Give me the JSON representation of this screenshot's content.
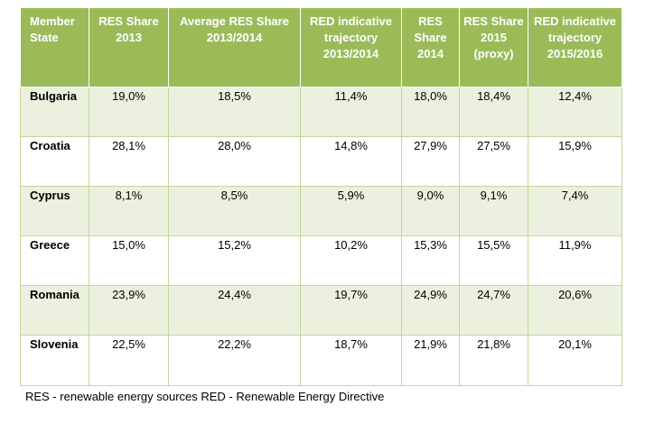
{
  "table": {
    "headers": [
      "Member State",
      "RES Share 2013",
      "Average RES Share 2013/2014",
      "RED indicative trajectory 2013/2014",
      "RES Share 2014",
      "RES Share 2015 (proxy)",
      "RED indicative trajectory 2015/2016"
    ],
    "rows": [
      {
        "state": "Bulgaria",
        "res2013": "19,0%",
        "avg_res": "18,5%",
        "red_1314": "11,4%",
        "res2014": "18,0%",
        "res2015": "18,4%",
        "red_1516": "12,4%"
      },
      {
        "state": "Croatia",
        "res2013": "28,1%",
        "avg_res": "28,0%",
        "red_1314": "14,8%",
        "res2014": "27,9%",
        "res2015": "27,5%",
        "red_1516": "15,9%"
      },
      {
        "state": "Cyprus",
        "res2013": "8,1%",
        "avg_res": "8,5%",
        "red_1314": "5,9%",
        "res2014": "9,0%",
        "res2015": "9,1%",
        "red_1516": "7,4%"
      },
      {
        "state": "Greece",
        "res2013": "15,0%",
        "avg_res": "15,2%",
        "red_1314": "10,2%",
        "res2014": "15,3%",
        "res2015": "15,5%",
        "red_1516": "11,9%"
      },
      {
        "state": "Romania",
        "res2013": "23,9%",
        "avg_res": "24,4%",
        "red_1314": "19,7%",
        "res2014": "24,9%",
        "res2015": "24,7%",
        "red_1516": "20,6%"
      },
      {
        "state": "Slovenia",
        "res2013": "22,5%",
        "avg_res": "22,2%",
        "red_1314": "18,7%",
        "res2014": "21,9%",
        "res2015": "21,8%",
        "red_1516": "20,1%"
      }
    ]
  },
  "footnote": "RES - renewable energy sources RED - Renewable Energy Directive",
  "colors": {
    "header_bg": "#9bbb59",
    "shaded_row": "#ebf1de",
    "border": "#c3d69b"
  }
}
